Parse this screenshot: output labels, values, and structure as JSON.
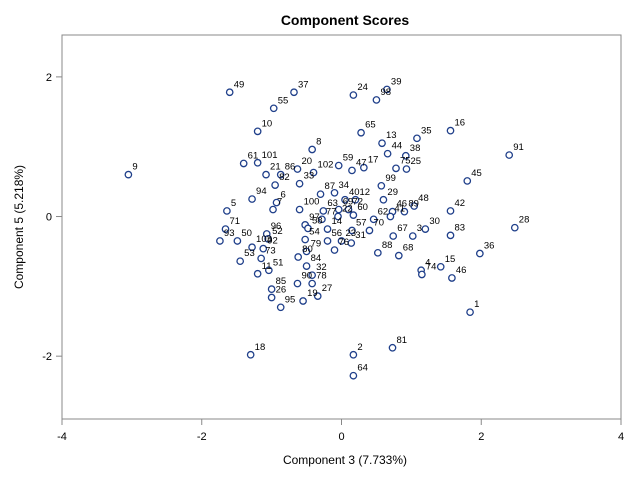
{
  "chart_data": {
    "type": "scatter",
    "title": "Component Scores",
    "xlabel": "Component 3 (7.733%)",
    "ylabel": "Component 5 (5.218%)",
    "xlim": [
      -4,
      4
    ],
    "ylim": [
      -2.9,
      2.6
    ],
    "xticks": [
      "-4",
      "-2",
      "0",
      "2",
      "4"
    ],
    "yticks": [
      "-2",
      "0",
      "2"
    ],
    "xtick_values": [
      -4,
      -2,
      0,
      2,
      4
    ],
    "ytick_values": [
      -2,
      0,
      2
    ],
    "grid": false,
    "legend": false,
    "marker_color": "#1f3f8a",
    "background": "#ffffff",
    "points": [
      {
        "label": "49",
        "x": -1.6,
        "y": 1.78
      },
      {
        "label": "37",
        "x": -0.68,
        "y": 1.78
      },
      {
        "label": "55",
        "x": -0.97,
        "y": 1.55
      },
      {
        "label": "24",
        "x": 0.17,
        "y": 1.74
      },
      {
        "label": "98",
        "x": 0.5,
        "y": 1.67
      },
      {
        "label": "39",
        "x": 0.65,
        "y": 1.82
      },
      {
        "label": "10",
        "x": -1.2,
        "y": 1.22
      },
      {
        "label": "65",
        "x": 0.28,
        "y": 1.2
      },
      {
        "label": "35",
        "x": 1.08,
        "y": 1.12
      },
      {
        "label": "16",
        "x": 1.56,
        "y": 1.23
      },
      {
        "label": "8",
        "x": -0.42,
        "y": 0.96
      },
      {
        "label": "13",
        "x": 0.58,
        "y": 1.05
      },
      {
        "label": "44",
        "x": 0.66,
        "y": 0.9
      },
      {
        "label": "38",
        "x": 0.92,
        "y": 0.87
      },
      {
        "label": "91",
        "x": 2.4,
        "y": 0.88
      },
      {
        "label": "101",
        "x": -1.2,
        "y": 0.77
      },
      {
        "label": "9",
        "x": -3.05,
        "y": 0.6
      },
      {
        "label": "61",
        "x": -1.4,
        "y": 0.76
      },
      {
        "label": "20",
        "x": -0.63,
        "y": 0.68
      },
      {
        "label": "59",
        "x": -0.04,
        "y": 0.73
      },
      {
        "label": "17",
        "x": 0.32,
        "y": 0.7
      },
      {
        "label": "45",
        "x": 1.8,
        "y": 0.51
      },
      {
        "label": "21",
        "x": -1.08,
        "y": 0.6
      },
      {
        "label": "86",
        "x": -0.87,
        "y": 0.6
      },
      {
        "label": "102",
        "x": -0.4,
        "y": 0.63
      },
      {
        "label": "47",
        "x": 0.15,
        "y": 0.66
      },
      {
        "label": "75",
        "x": 0.78,
        "y": 0.69
      },
      {
        "label": "25",
        "x": 0.93,
        "y": 0.68
      },
      {
        "label": "82",
        "x": -0.95,
        "y": 0.45
      },
      {
        "label": "33",
        "x": -0.6,
        "y": 0.47
      },
      {
        "label": "99",
        "x": 0.57,
        "y": 0.44
      },
      {
        "label": "87",
        "x": -0.3,
        "y": 0.32
      },
      {
        "label": "34",
        "x": -0.1,
        "y": 0.34
      },
      {
        "label": "5",
        "x": -1.64,
        "y": 0.08
      },
      {
        "label": "94",
        "x": -1.28,
        "y": 0.25
      },
      {
        "label": "6",
        "x": -0.93,
        "y": 0.2
      },
      {
        "label": "40",
        "x": 0.05,
        "y": 0.24
      },
      {
        "label": "12",
        "x": 0.2,
        "y": 0.24
      },
      {
        "label": "29",
        "x": 0.6,
        "y": 0.24
      },
      {
        "label": "48",
        "x": 1.04,
        "y": 0.15
      },
      {
        "label": "42",
        "x": 1.56,
        "y": 0.08
      },
      {
        "label": "7",
        "x": -0.98,
        "y": 0.1
      },
      {
        "label": "100",
        "x": -0.6,
        "y": 0.1
      },
      {
        "label": "63",
        "x": -0.26,
        "y": 0.08
      },
      {
        "label": "69",
        "x": -0.04,
        "y": 0.1
      },
      {
        "label": "72",
        "x": 0.1,
        "y": 0.1
      },
      {
        "label": "46",
        "x": 0.73,
        "y": 0.07
      },
      {
        "label": "89",
        "x": 0.9,
        "y": 0.07
      },
      {
        "label": "28",
        "x": 2.48,
        "y": -0.16
      },
      {
        "label": "71",
        "x": -1.66,
        "y": -0.18
      },
      {
        "label": "97",
        "x": -0.52,
        "y": -0.12
      },
      {
        "label": "77",
        "x": -0.28,
        "y": -0.04
      },
      {
        "label": "22",
        "x": -0.05,
        "y": 0.0
      },
      {
        "label": "60",
        "x": 0.17,
        "y": 0.02
      },
      {
        "label": "62",
        "x": 0.46,
        "y": -0.04
      },
      {
        "label": "41",
        "x": 0.7,
        "y": 0.0
      },
      {
        "label": "93",
        "x": -1.74,
        "y": -0.35
      },
      {
        "label": "50",
        "x": -1.49,
        "y": -0.35
      },
      {
        "label": "96",
        "x": -1.07,
        "y": -0.25
      },
      {
        "label": "58",
        "x": -0.48,
        "y": -0.17
      },
      {
        "label": "14",
        "x": -0.2,
        "y": -0.18
      },
      {
        "label": "57",
        "x": 0.15,
        "y": -0.2
      },
      {
        "label": "70",
        "x": 0.4,
        "y": -0.2
      },
      {
        "label": "67",
        "x": 0.74,
        "y": -0.28
      },
      {
        "label": "3",
        "x": 1.02,
        "y": -0.28
      },
      {
        "label": "30",
        "x": 1.2,
        "y": -0.18
      },
      {
        "label": "83",
        "x": 1.56,
        "y": -0.27
      },
      {
        "label": "52",
        "x": -1.05,
        "y": -0.32
      },
      {
        "label": "54",
        "x": -0.52,
        "y": -0.33
      },
      {
        "label": "56",
        "x": -0.2,
        "y": -0.35
      },
      {
        "label": "23",
        "x": 0.0,
        "y": -0.35
      },
      {
        "label": "31",
        "x": 0.14,
        "y": -0.38
      },
      {
        "label": "103",
        "x": -1.28,
        "y": -0.44
      },
      {
        "label": "92",
        "x": -1.12,
        "y": -0.46
      },
      {
        "label": "73",
        "x": -1.15,
        "y": -0.6
      },
      {
        "label": "79",
        "x": -0.5,
        "y": -0.5
      },
      {
        "label": "76",
        "x": -0.1,
        "y": -0.48
      },
      {
        "label": "88",
        "x": 0.52,
        "y": -0.52
      },
      {
        "label": "68",
        "x": 0.82,
        "y": -0.56
      },
      {
        "label": "36",
        "x": 1.98,
        "y": -0.53
      },
      {
        "label": "53",
        "x": -1.45,
        "y": -0.64
      },
      {
        "label": "80",
        "x": -0.62,
        "y": -0.58
      },
      {
        "label": "51",
        "x": -1.04,
        "y": -0.77
      },
      {
        "label": "84",
        "x": -0.5,
        "y": -0.71
      },
      {
        "label": "4",
        "x": 1.14,
        "y": -0.77
      },
      {
        "label": "15",
        "x": 1.42,
        "y": -0.72
      },
      {
        "label": "11",
        "x": -1.2,
        "y": -0.82
      },
      {
        "label": "32",
        "x": -0.42,
        "y": -0.84
      },
      {
        "label": "74",
        "x": 1.15,
        "y": -0.83
      },
      {
        "label": "46",
        "x": 1.58,
        "y": -0.88
      },
      {
        "label": "90",
        "x": -0.63,
        "y": -0.96
      },
      {
        "label": "78",
        "x": -0.42,
        "y": -0.96
      },
      {
        "label": "85",
        "x": -1.0,
        "y": -1.04
      },
      {
        "label": "26",
        "x": -1.0,
        "y": -1.16
      },
      {
        "label": "19",
        "x": -0.55,
        "y": -1.21
      },
      {
        "label": "27",
        "x": -0.34,
        "y": -1.14
      },
      {
        "label": "95",
        "x": -0.87,
        "y": -1.3
      },
      {
        "label": "1",
        "x": 1.84,
        "y": -1.37
      },
      {
        "label": "81",
        "x": 0.73,
        "y": -1.88
      },
      {
        "label": "18",
        "x": -1.3,
        "y": -1.98
      },
      {
        "label": "2",
        "x": 0.17,
        "y": -1.98
      },
      {
        "label": "64",
        "x": 0.17,
        "y": -2.28
      }
    ]
  }
}
